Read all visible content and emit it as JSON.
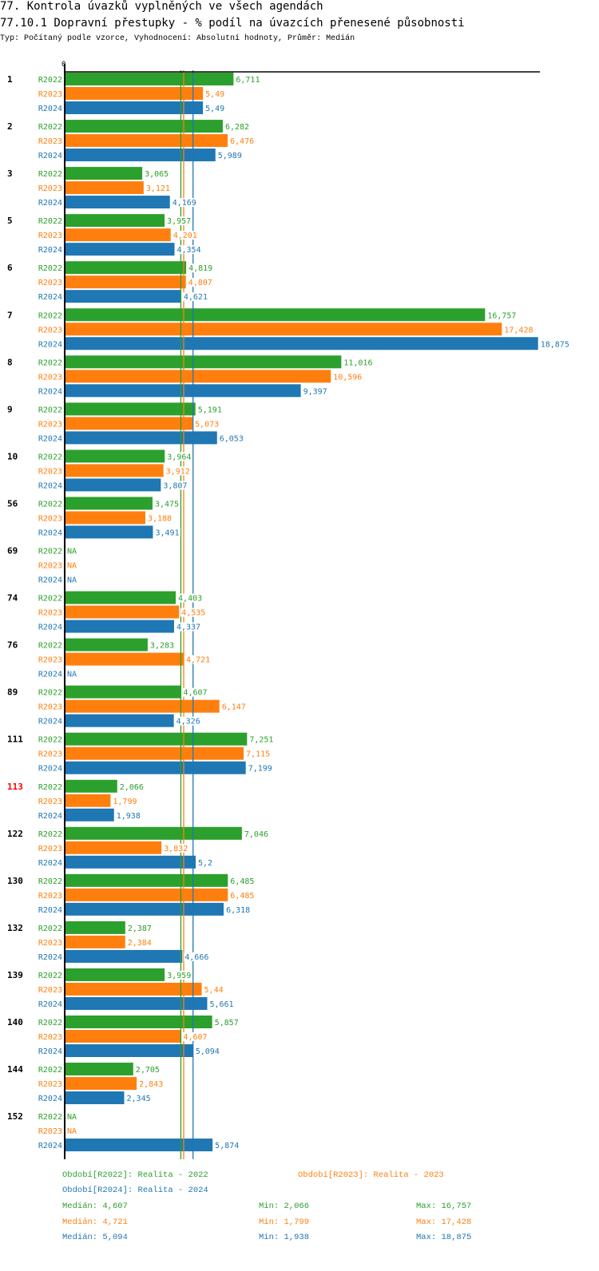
{
  "header": {
    "title": "77. Kontrola úvazků vyplněných ve všech agendách",
    "subtitle": "77.10.1 Dopravní přestupky - % podíl na úvazcích přenesené působnosti",
    "meta": "Typ: Počítaný podle vzorce, Vyhodnocení: Absolutní hodnoty, Průměr: Medián"
  },
  "colors": {
    "R2022": "#2ca02c",
    "R2023": "#ff7f0e",
    "R2024": "#1f77b4",
    "highlight": "#ff0000"
  },
  "chart_data": {
    "type": "bar",
    "orientation": "horizontal",
    "x_tick_labels": [
      "0"
    ],
    "xlim": [
      0,
      19
    ],
    "series_names": [
      "R2022",
      "R2023",
      "R2024"
    ],
    "categories": [
      "1",
      "2",
      "3",
      "5",
      "6",
      "7",
      "8",
      "9",
      "10",
      "56",
      "69",
      "74",
      "76",
      "89",
      "111",
      "113",
      "122",
      "130",
      "132",
      "139",
      "140",
      "144",
      "152"
    ],
    "highlighted_category": "113",
    "series": [
      {
        "name": "R2022",
        "values": [
          6.711,
          6.282,
          3.065,
          3.957,
          4.819,
          16.757,
          11.016,
          5.191,
          3.964,
          3.475,
          null,
          4.403,
          3.283,
          4.607,
          7.251,
          2.066,
          7.046,
          6.485,
          2.387,
          3.959,
          5.857,
          2.705,
          null
        ],
        "labels": [
          "6,711",
          "6,282",
          "3,065",
          "3,957",
          "4,819",
          "16,757",
          "11,016",
          "5,191",
          "3,964",
          "3,475",
          "NA",
          "4,403",
          "3,283",
          "4,607",
          "7,251",
          "2,066",
          "7,046",
          "6,485",
          "2,387",
          "3,959",
          "5,857",
          "2,705",
          "NA"
        ]
      },
      {
        "name": "R2023",
        "values": [
          5.49,
          6.476,
          3.121,
          4.201,
          4.807,
          17.428,
          10.596,
          5.073,
          3.912,
          3.188,
          null,
          4.535,
          4.721,
          6.147,
          7.115,
          1.799,
          3.832,
          6.485,
          2.384,
          5.44,
          4.607,
          2.843,
          null
        ],
        "labels": [
          "5,49",
          "6,476",
          "3,121",
          "4,201",
          "4,807",
          "17,428",
          "10,596",
          "5,073",
          "3,912",
          "3,188",
          "NA",
          "4,535",
          "4,721",
          "6,147",
          "7,115",
          "1,799",
          "3,832",
          "6,485",
          "2,384",
          "5,44",
          "4,607",
          "2,843",
          "NA"
        ]
      },
      {
        "name": "R2024",
        "values": [
          5.49,
          5.989,
          4.169,
          4.354,
          4.621,
          18.875,
          9.397,
          6.053,
          3.807,
          3.491,
          null,
          4.337,
          null,
          4.326,
          7.199,
          1.938,
          5.2,
          6.318,
          4.666,
          5.661,
          5.094,
          2.345,
          5.874
        ],
        "labels": [
          "5,49",
          "5,989",
          "4,169",
          "4,354",
          "4,621",
          "18,875",
          "9,397",
          "6,053",
          "3,807",
          "3,491",
          "NA",
          "4,337",
          "NA",
          "4,326",
          "7,199",
          "1,938",
          "5,2",
          "6,318",
          "4,666",
          "5,661",
          "5,094",
          "2,345",
          "5,874"
        ]
      }
    ],
    "medians": {
      "R2022": 4.607,
      "R2023": 4.721,
      "R2024": 5.094
    },
    "legend": {
      "periods": [
        {
          "series": "R2022",
          "text": "Období[R2022]: Realita - 2022"
        },
        {
          "series": "R2023",
          "text": "Období[R2023]: Realita - 2023"
        },
        {
          "series": "R2024",
          "text": "Období[R2024]: Realita - 2024"
        }
      ],
      "stats": [
        {
          "series": "R2022",
          "median": "Medián: 4,607",
          "min": "Min: 2,066",
          "max": "Max: 16,757"
        },
        {
          "series": "R2023",
          "median": "Medián: 4,721",
          "min": "Min: 1,799",
          "max": "Max: 17,428"
        },
        {
          "series": "R2024",
          "median": "Medián: 5,094",
          "min": "Min: 1,938",
          "max": "Max: 18,875"
        }
      ]
    }
  }
}
